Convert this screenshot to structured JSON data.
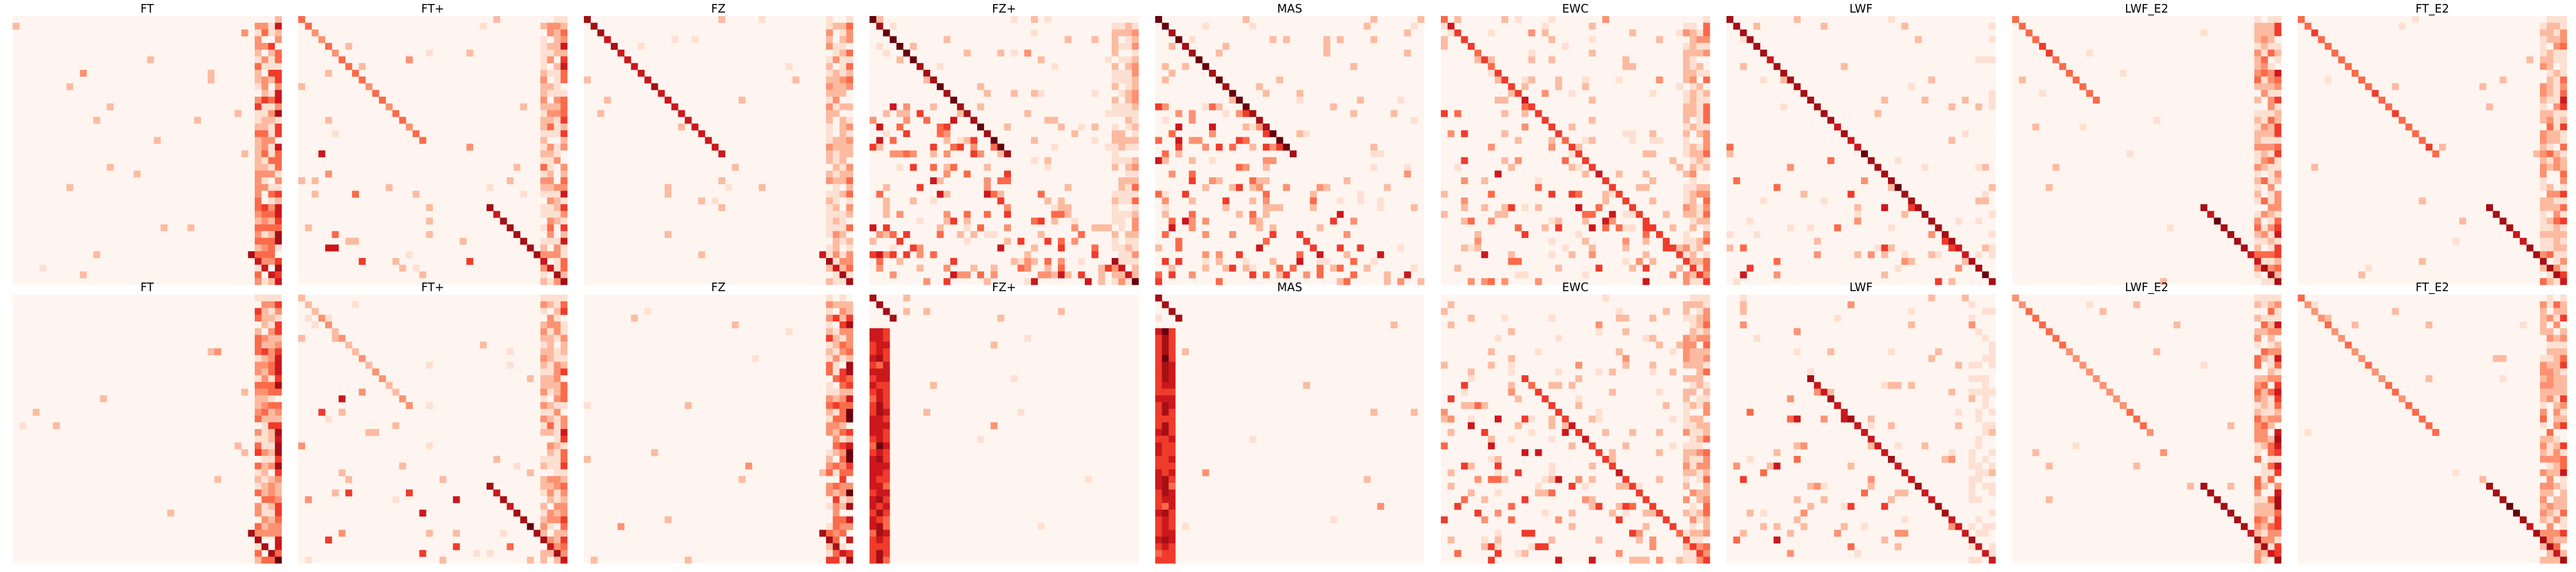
{
  "colors": {
    "background": "#ffffff",
    "scale": [
      "#fff5f0",
      "#fee0d2",
      "#fcbba1",
      "#fc9272",
      "#fb6a4a",
      "#ef3b2c",
      "#cb181d",
      "#a50f15",
      "#67000d"
    ]
  },
  "chart_data": {
    "type": "heatmap",
    "grid": false,
    "axes_visible": false,
    "colormap": "Reds",
    "rows_per_panel": 40,
    "cols_per_panel": 40,
    "panel_rows": [
      {
        "panels": [
          {
            "title": "FT",
            "pattern": {
              "diag": 0.0,
              "diag_first": 0,
              "diag_last": 0,
              "lower": 0.0,
              "right": 0.6,
              "bottom_diag": 5,
              "noise": 0.01,
              "left_cols": 0
            }
          },
          {
            "title": "FT+",
            "pattern": {
              "diag": 0.35,
              "diag_first": 0,
              "diag_last": 18,
              "lower": 0.02,
              "right": 0.45,
              "bottom_diag": 12,
              "noise": 0.02,
              "left_cols": 0
            }
          },
          {
            "title": "FZ",
            "pattern": {
              "diag": 0.7,
              "diag_first": 0,
              "diag_last": 20,
              "lower": 0.0,
              "right": 0.35,
              "bottom_diag": 5,
              "noise": 0.02,
              "left_cols": 0
            }
          },
          {
            "title": "FZ+",
            "pattern": {
              "diag": 0.85,
              "diag_first": 0,
              "diag_last": 20,
              "lower": 0.18,
              "right": 0.3,
              "bottom_diag": 4,
              "noise": 0.08,
              "left_cols": 0
            }
          },
          {
            "title": "MAS",
            "pattern": {
              "diag": 0.85,
              "diag_first": 0,
              "diag_last": 20,
              "lower": 0.15,
              "right": 0.0,
              "bottom_diag": 0,
              "noise": 0.06,
              "left_cols": 0
            }
          },
          {
            "title": "EWC",
            "pattern": {
              "diag": 0.55,
              "diag_first": 0,
              "diag_last": 39,
              "lower": 0.08,
              "right": 0.35,
              "bottom_diag": 0,
              "noise": 0.1,
              "left_cols": 0
            }
          },
          {
            "title": "LWF",
            "pattern": {
              "diag": 0.8,
              "diag_first": 0,
              "diag_last": 39,
              "lower": 0.03,
              "right": 0.05,
              "bottom_diag": 0,
              "noise": 0.04,
              "left_cols": 0
            }
          },
          {
            "title": "LWF_E2",
            "pattern": {
              "diag": 0.45,
              "diag_first": 0,
              "diag_last": 12,
              "lower": 0.0,
              "right": 0.5,
              "bottom_diag": 12,
              "noise": 0.01,
              "left_cols": 0
            }
          },
          {
            "title": "FT_E2",
            "pattern": {
              "diag": 0.45,
              "diag_first": 0,
              "diag_last": 20,
              "lower": 0.0,
              "right": 0.45,
              "bottom_diag": 12,
              "noise": 0.01,
              "left_cols": 0
            }
          }
        ]
      },
      {
        "panels": [
          {
            "title": "FT",
            "pattern": {
              "diag": 0.0,
              "diag_first": 0,
              "diag_last": 0,
              "lower": 0.0,
              "right": 0.6,
              "bottom_diag": 5,
              "noise": 0.01,
              "left_cols": 0
            }
          },
          {
            "title": "FT+",
            "pattern": {
              "diag": 0.25,
              "diag_first": 0,
              "diag_last": 16,
              "lower": 0.02,
              "right": 0.45,
              "bottom_diag": 12,
              "noise": 0.02,
              "left_cols": 0
            }
          },
          {
            "title": "FZ",
            "pattern": {
              "diag": 0.0,
              "diag_first": 0,
              "diag_last": 0,
              "lower": 0.0,
              "right": 0.65,
              "bottom_diag": 5,
              "noise": 0.01,
              "left_cols": 0
            }
          },
          {
            "title": "FZ+",
            "pattern": {
              "diag": 0.8,
              "diag_first": 0,
              "diag_last": 3,
              "lower": 0.0,
              "right": 0.0,
              "bottom_diag": 0,
              "noise": 0.01,
              "left_cols": 3
            }
          },
          {
            "title": "MAS",
            "pattern": {
              "diag": 0.8,
              "diag_first": 0,
              "diag_last": 3,
              "lower": 0.0,
              "right": 0.0,
              "bottom_diag": 0,
              "noise": 0.01,
              "left_cols": 3
            }
          },
          {
            "title": "EWC",
            "pattern": {
              "diag": 0.55,
              "diag_first": 12,
              "diag_last": 39,
              "lower": 0.08,
              "right": 0.35,
              "bottom_diag": 0,
              "noise": 0.1,
              "left_cols": 0
            }
          },
          {
            "title": "LWF",
            "pattern": {
              "diag": 0.7,
              "diag_first": 12,
              "diag_last": 39,
              "lower": 0.04,
              "right": 0.1,
              "bottom_diag": 0,
              "noise": 0.05,
              "left_cols": 0
            }
          },
          {
            "title": "LWF_E2",
            "pattern": {
              "diag": 0.35,
              "diag_first": 0,
              "diag_last": 20,
              "lower": 0.0,
              "right": 0.55,
              "bottom_diag": 12,
              "noise": 0.01,
              "left_cols": 0
            }
          },
          {
            "title": "FT_E2",
            "pattern": {
              "diag": 0.4,
              "diag_first": 0,
              "diag_last": 20,
              "lower": 0.0,
              "right": 0.45,
              "bottom_diag": 12,
              "noise": 0.01,
              "left_cols": 0
            }
          }
        ]
      }
    ]
  }
}
